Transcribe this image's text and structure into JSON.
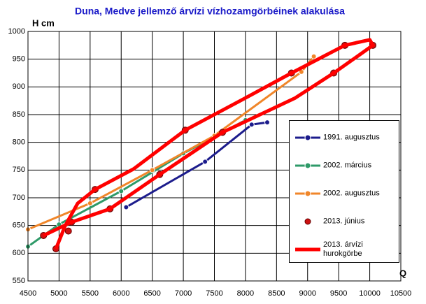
{
  "chart_data": {
    "type": "line",
    "title": "Duna, Medve jellemző árvízi vízhozamgörbéinek alakulása",
    "y_label": "H cm",
    "x_label": "Q",
    "xlim": [
      4500,
      10500
    ],
    "xticks": [
      4500,
      5000,
      5500,
      6000,
      6500,
      7000,
      7500,
      8000,
      8500,
      9000,
      9500,
      10000,
      10500
    ],
    "ylim": [
      550,
      1000
    ],
    "yticks": [
      550,
      600,
      650,
      700,
      750,
      800,
      850,
      900,
      950,
      1000
    ],
    "grid": true,
    "legend": "right",
    "series": [
      {
        "name": "1991. augusztus",
        "color": "#1c1c8c",
        "mode": "line+markers",
        "x": [
          6080,
          7350,
          8100,
          8350
        ],
        "values": [
          683,
          765,
          832,
          836
        ]
      },
      {
        "name": "2002. március",
        "color": "#2e9a68",
        "mode": "line+markers",
        "x": [
          4500,
          5000,
          6000,
          7000,
          8000
        ],
        "values": [
          612,
          652,
          712,
          780,
          840
        ]
      },
      {
        "name": "2002. augusztus",
        "color": "#f0862a",
        "mode": "line+markers",
        "x": [
          4500,
          5500,
          6500,
          7500,
          8900,
          9100
        ],
        "values": [
          643,
          690,
          750,
          812,
          927,
          955
        ]
      },
      {
        "name": "2013. június",
        "color": "#cc1111",
        "mode": "markers",
        "x": [
          4950,
          4750,
          5150,
          5200,
          5580,
          5820,
          6620,
          7030,
          7630,
          8740,
          9420,
          9600,
          10050
        ],
        "values": [
          608,
          632,
          640,
          656,
          715,
          680,
          742,
          822,
          818,
          925,
          925,
          975,
          975
        ]
      },
      {
        "name": "2013. árvízi hurokgörbe",
        "color": "#ff0000",
        "mode": "line",
        "x": [
          4950,
          5100,
          5300,
          5580,
          6200,
          7030,
          8000,
          8740,
          9600,
          10000,
          10050,
          9800,
          9420,
          8800,
          7630,
          6620,
          5820,
          5200,
          4750
        ],
        "values": [
          608,
          650,
          690,
          715,
          752,
          822,
          880,
          925,
          975,
          985,
          975,
          955,
          925,
          880,
          818,
          742,
          680,
          656,
          632
        ]
      }
    ]
  }
}
